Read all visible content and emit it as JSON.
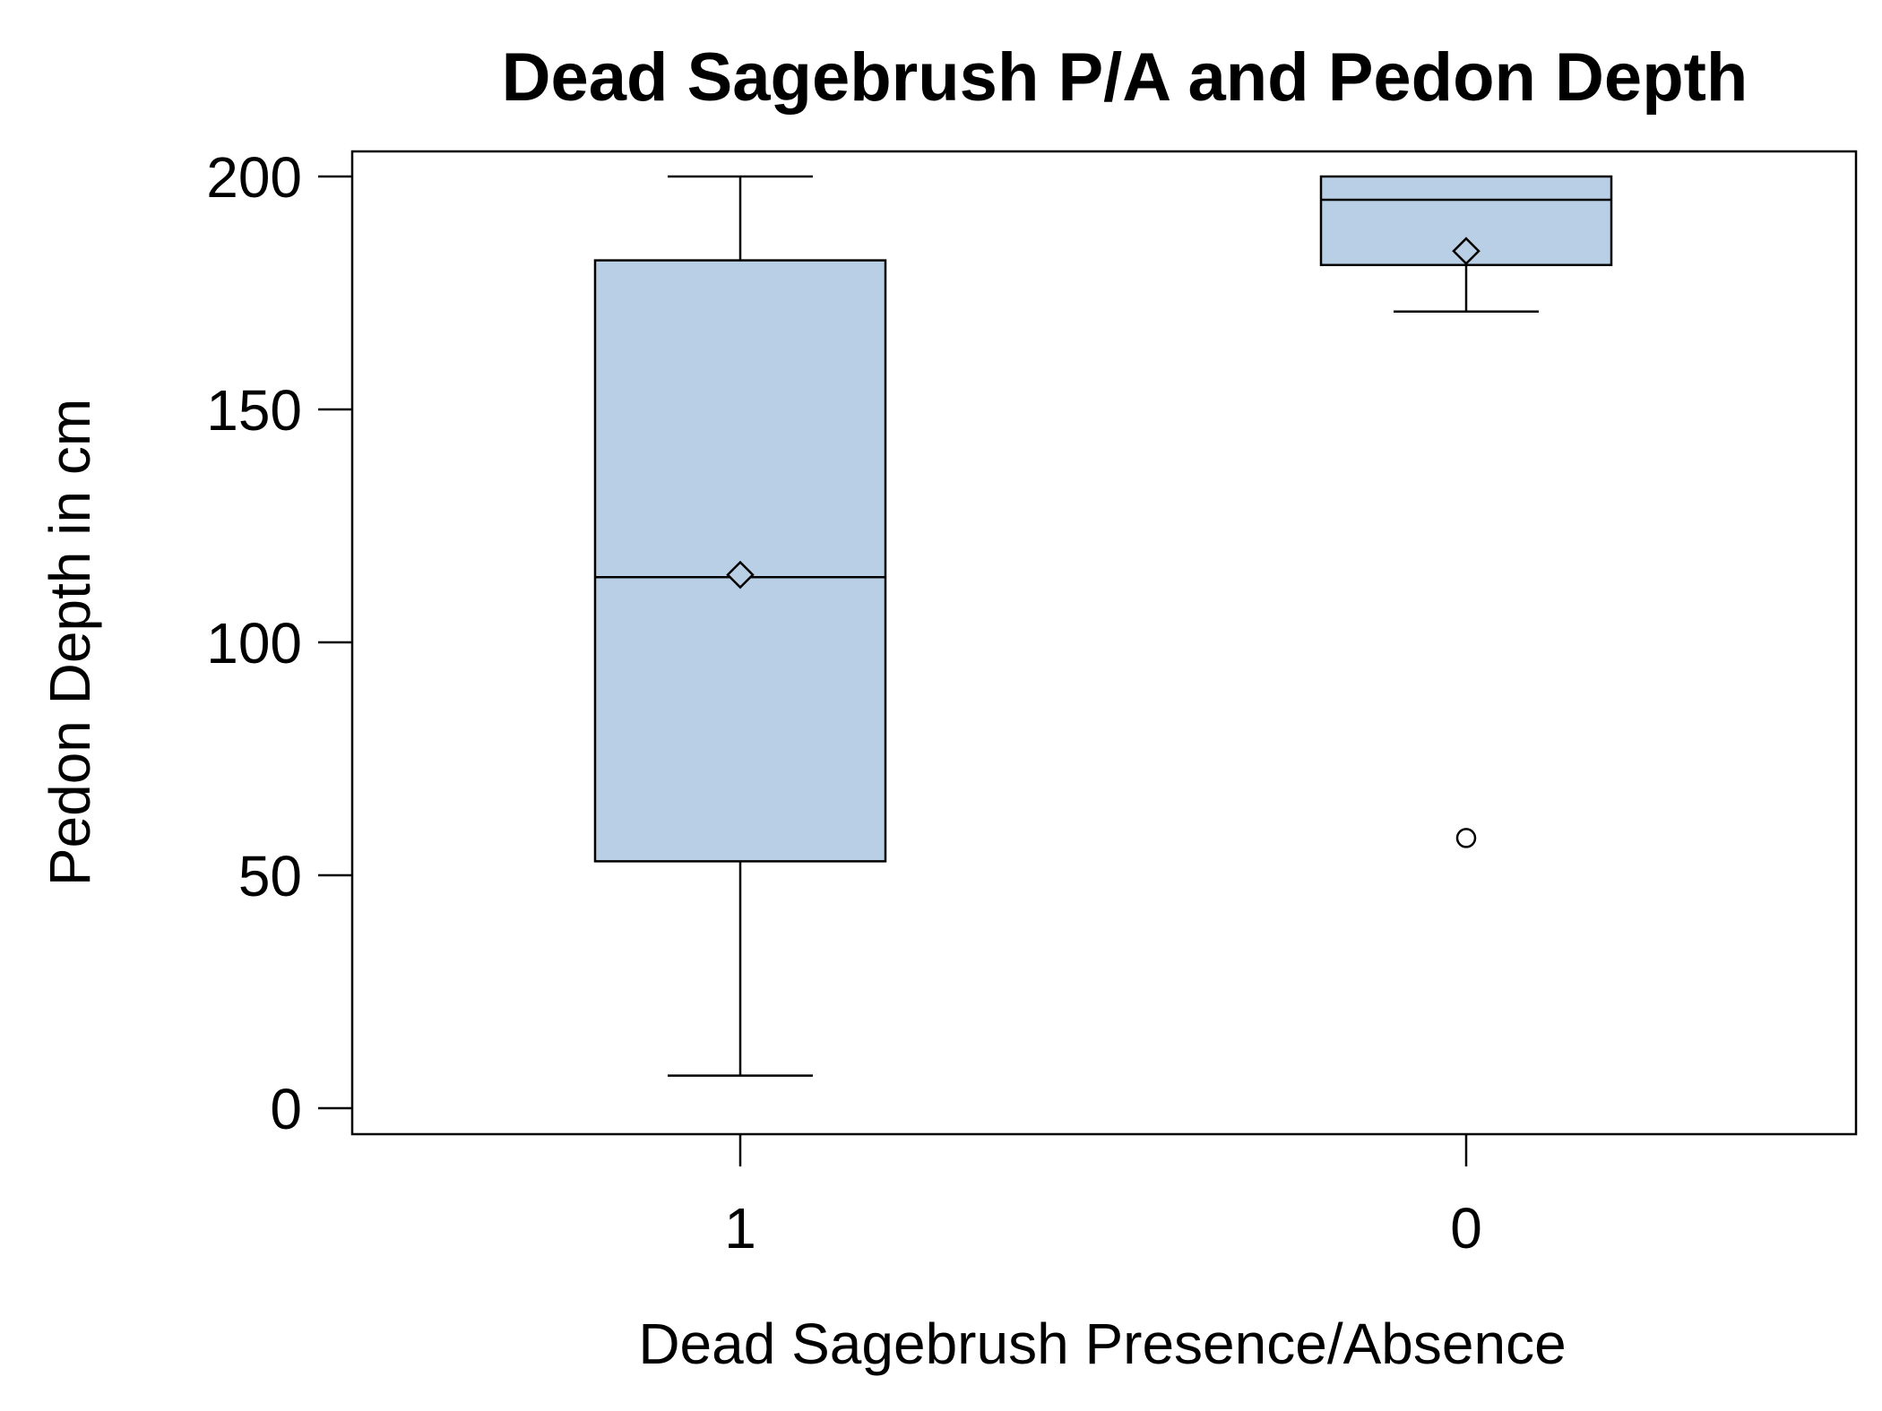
{
  "chart_data": {
    "type": "box",
    "title": "Dead Sagebrush P/A and Pedon Depth",
    "xlabel": "Dead Sagebrush Presence/Absence",
    "ylabel": "Pedon Depth in cm",
    "ylim": [
      -5.5,
      206
    ],
    "yticks": [
      0,
      50,
      100,
      150,
      200
    ],
    "categories": [
      "1",
      "0"
    ],
    "boxes": [
      {
        "category": "1",
        "whisker_low": 7,
        "q1": 53,
        "median": 114,
        "q3": 182,
        "whisker_high": 200,
        "mean": 114.5,
        "outliers": []
      },
      {
        "category": "0",
        "whisker_low": 171,
        "q1": 181,
        "median": 195,
        "q3": 200,
        "whisker_high": 200,
        "mean": 184,
        "outliers": [
          58
        ]
      }
    ],
    "grid": false,
    "legend": "none",
    "colors": {
      "box_fill": "#b9cfe6",
      "stroke": "#000000",
      "background": "#ffffff"
    }
  }
}
